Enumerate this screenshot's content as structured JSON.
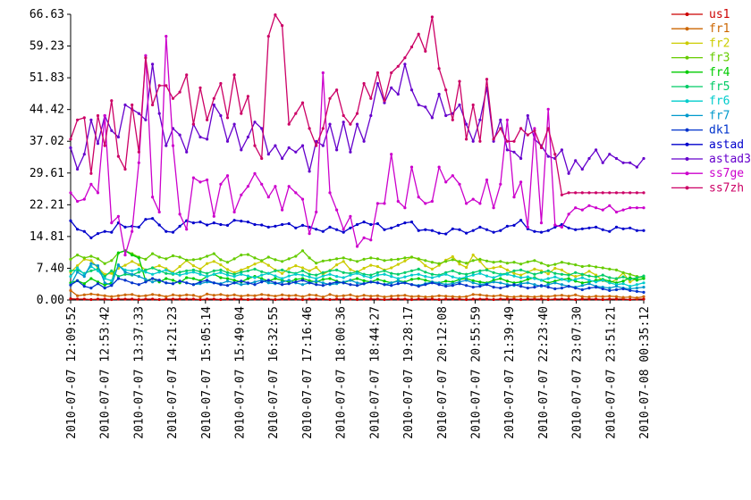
{
  "chart_data": {
    "type": "line",
    "title": "",
    "xlabel": "",
    "ylabel": "",
    "ylim": [
      0,
      66.63
    ],
    "y_ticks": [
      "0.00",
      "7.40",
      "14.81",
      "22.21",
      "29.61",
      "37.02",
      "44.42",
      "51.83",
      "59.23",
      "66.63"
    ],
    "x_ticks": [
      "2010-07-07 12:09:52",
      "2010-07-07 12:53:42",
      "2010-07-07 13:37:33",
      "2010-07-07 14:21:23",
      "2010-07-07 15:05:14",
      "2010-07-07 15:49:04",
      "2010-07-07 16:32:55",
      "2010-07-07 17:16:46",
      "2010-07-07 18:00:36",
      "2010-07-07 18:44:27",
      "2010-07-07 19:28:17",
      "2010-07-07 20:12:08",
      "2010-07-07 20:55:59",
      "2010-07-07 21:39:49",
      "2010-07-07 22:23:40",
      "2010-07-07 23:07:30",
      "2010-07-07 23:51:21",
      "2010-07-08 00:35:12"
    ],
    "grid": false,
    "legend_position": "right",
    "series": [
      {
        "name": "us1",
        "color": "#cc0000",
        "values": [
          0.3,
          0.2,
          0.2,
          0.1,
          0.2,
          0.2,
          0.1,
          0.2,
          0.2,
          0.2,
          0.1,
          0.2,
          0.2,
          0.1,
          0.2,
          0.2,
          0.2,
          0.2,
          0.2,
          0.1,
          0.2,
          0.2,
          0.1,
          0.2,
          0.2,
          0.2,
          0.1,
          0.2,
          0.2,
          0.2,
          0.1,
          0.2,
          0.2,
          0.2,
          0.1,
          0.2,
          0.2,
          0.2,
          0.1,
          0.2,
          0.2,
          0.2,
          0.1,
          0.2,
          0.2,
          0.2,
          0.1,
          0.2,
          0.2,
          0.2,
          0.1,
          0.2,
          0.2,
          0.2,
          0.1,
          0.2,
          0.2,
          0.2,
          0.1,
          0.2,
          0.2,
          0.2,
          0.1,
          0.2,
          0.2,
          0.2,
          0.1,
          0.2,
          0.2,
          0.2,
          0.1,
          0.2,
          0.2,
          0.2,
          0.1,
          0.2,
          0.2,
          0.2,
          0.1,
          0.2,
          0.2,
          0.2,
          0.1,
          0.2,
          0.2
        ]
      },
      {
        "name": "fr1",
        "color": "#cc6600",
        "values": [
          2.2,
          1.0,
          1.2,
          1.4,
          1.2,
          1.0,
          0.8,
          1.0,
          1.2,
          1.3,
          0.9,
          1.0,
          1.3,
          1.1,
          0.8,
          1.2,
          1.0,
          1.2,
          1.1,
          0.7,
          1.4,
          1.1,
          1.3,
          1.0,
          1.2,
          0.9,
          1.1,
          1.0,
          1.3,
          1.1,
          0.9,
          1.2,
          1.0,
          1.1,
          0.8,
          1.2,
          1.1,
          0.7,
          1.3,
          0.9,
          1.0,
          1.2,
          0.8,
          1.1,
          0.9,
          1.0,
          0.7,
          0.9,
          1.0,
          1.1,
          0.8,
          0.9,
          0.7,
          0.8,
          1.0,
          0.9,
          0.8,
          0.7,
          0.8,
          1.3,
          1.2,
          1.0,
          0.9,
          1.1,
          0.8,
          0.7,
          0.9,
          0.8,
          0.7,
          0.9,
          0.8,
          1.0,
          1.1,
          0.9,
          1.2,
          0.8,
          0.7,
          0.9,
          0.8,
          0.9,
          0.8,
          0.6,
          0.7,
          0.5,
          0.8
        ]
      },
      {
        "name": "fr2",
        "color": "#cccc00",
        "values": [
          6.5,
          8.0,
          9.5,
          9.2,
          7.5,
          6.0,
          6.2,
          7.4,
          8.1,
          9.0,
          8.2,
          7.0,
          7.5,
          8.0,
          7.3,
          6.5,
          7.8,
          9.2,
          8.0,
          7.2,
          8.5,
          9.0,
          8.2,
          7.1,
          6.4,
          7.0,
          7.6,
          8.4,
          9.0,
          8.1,
          7.0,
          6.2,
          7.3,
          8.0,
          7.5,
          6.8,
          7.6,
          6.0,
          6.9,
          8.2,
          9.0,
          7.1,
          6.5,
          7.4,
          8.1,
          7.8,
          7.0,
          7.5,
          8.3,
          9.1,
          10.0,
          9.5,
          8.0,
          7.2,
          8.1,
          9.3,
          10.1,
          8.4,
          7.6,
          10.5,
          9.0,
          7.2,
          7.5,
          7.8,
          7.0,
          6.2,
          5.8,
          6.5,
          7.2,
          6.8,
          6.1,
          7.4,
          7.0,
          6.0,
          5.5,
          5.9,
          6.7,
          5.8,
          4.5,
          4.0,
          4.8,
          6.3,
          4.2,
          5.1,
          5.5
        ]
      },
      {
        "name": "fr3",
        "color": "#66cc00",
        "values": [
          9.5,
          10.5,
          9.8,
          10.2,
          9.6,
          8.5,
          9.2,
          11.0,
          11.5,
          10.8,
          10.0,
          9.5,
          10.8,
          10.0,
          9.6,
          10.3,
          10.0,
          9.3,
          9.4,
          9.6,
          10.2,
          10.8,
          9.4,
          8.8,
          9.6,
          10.5,
          10.6,
          9.8,
          9.2,
          10.0,
          9.4,
          9.0,
          9.6,
          10.2,
          11.5,
          9.8,
          8.6,
          9.1,
          9.3,
          9.6,
          9.8,
          9.4,
          9.0,
          9.5,
          9.8,
          9.6,
          9.2,
          9.4,
          9.5,
          9.8,
          10.0,
          9.6,
          9.2,
          8.8,
          8.5,
          9.0,
          9.4,
          9.0,
          8.6,
          9.2,
          9.5,
          9.1,
          8.8,
          9.0,
          8.6,
          8.8,
          8.4,
          8.9,
          9.2,
          8.6,
          8.0,
          8.3,
          8.8,
          8.5,
          8.2,
          7.8,
          8.0,
          7.7,
          7.5,
          7.2,
          7.0,
          6.4,
          6.0,
          5.5,
          5.2
        ]
      },
      {
        "name": "fr4",
        "color": "#00cc00",
        "values": [
          4.0,
          4.5,
          3.8,
          5.0,
          4.2,
          3.5,
          4.0,
          11.0,
          11.5,
          10.5,
          9.8,
          4.5,
          5.0,
          4.2,
          5.0,
          4.6,
          4.0,
          5.2,
          5.0,
          4.5,
          5.5,
          6.0,
          5.2,
          5.0,
          4.6,
          4.2,
          5.0,
          5.5,
          5.0,
          4.4,
          5.0,
          4.6,
          4.2,
          4.8,
          5.0,
          4.5,
          4.2,
          4.8,
          5.0,
          4.4,
          4.0,
          4.6,
          5.0,
          4.5,
          4.2,
          4.8,
          4.4,
          4.0,
          4.5,
          4.2,
          4.8,
          5.0,
          4.6,
          4.2,
          4.0,
          4.4,
          4.2,
          4.8,
          5.0,
          4.5,
          4.2,
          4.0,
          4.6,
          5.0,
          4.4,
          4.0,
          4.2,
          4.8,
          5.2,
          4.6,
          4.0,
          4.4,
          4.8,
          5.0,
          4.4,
          4.0,
          4.2,
          4.6,
          4.8,
          4.4,
          4.0,
          4.4,
          5.2,
          4.6,
          5.0
        ]
      },
      {
        "name": "fr5",
        "color": "#00cc66",
        "values": [
          6.8,
          7.0,
          6.2,
          6.8,
          7.2,
          5.5,
          6.8,
          5.5,
          6.0,
          5.8,
          6.5,
          7.0,
          7.5,
          6.8,
          6.2,
          6.0,
          6.5,
          6.8,
          7.0,
          6.6,
          6.2,
          6.8,
          7.0,
          6.4,
          6.0,
          6.5,
          6.8,
          7.2,
          6.6,
          6.2,
          6.8,
          7.0,
          6.5,
          6.2,
          6.8,
          6.0,
          5.8,
          6.4,
          6.8,
          7.0,
          6.4,
          6.2,
          6.6,
          6.0,
          5.8,
          6.4,
          6.8,
          6.2,
          6.0,
          6.4,
          6.8,
          7.2,
          6.5,
          6.0,
          5.8,
          6.4,
          6.8,
          6.2,
          6.0,
          6.4,
          6.8,
          7.0,
          6.4,
          6.0,
          6.2,
          6.8,
          7.0,
          6.5,
          6.0,
          6.4,
          6.8,
          6.2,
          6.0,
          5.8,
          6.4,
          6.0,
          5.6,
          5.4,
          5.8,
          5.2,
          5.0,
          5.4,
          4.8,
          5.2,
          5.6
        ]
      },
      {
        "name": "fr6",
        "color": "#00cccc",
        "values": [
          5.5,
          7.5,
          6.0,
          7.8,
          6.8,
          5.0,
          4.5,
          8.0,
          7.0,
          6.8,
          7.2,
          6.5,
          6.0,
          6.5,
          7.0,
          6.2,
          5.8,
          6.2,
          6.5,
          6.0,
          5.5,
          6.0,
          6.4,
          5.8,
          5.5,
          6.0,
          5.6,
          5.2,
          5.8,
          6.2,
          5.6,
          5.0,
          5.6,
          6.0,
          5.8,
          5.4,
          5.0,
          5.6,
          6.0,
          5.5,
          5.2,
          5.8,
          6.2,
          5.6,
          5.2,
          5.8,
          6.0,
          5.5,
          5.0,
          5.4,
          5.8,
          6.0,
          5.5,
          5.2,
          5.6,
          6.0,
          5.4,
          5.0,
          5.4,
          5.8,
          6.2,
          5.6,
          5.2,
          5.8,
          6.0,
          5.6,
          5.2,
          5.4,
          5.0,
          4.6,
          5.0,
          5.4,
          4.8,
          4.4,
          4.8,
          5.2,
          4.6,
          4.2,
          4.6,
          4.0,
          3.6,
          3.8,
          3.2,
          3.6,
          4.0
        ]
      },
      {
        "name": "fr7",
        "color": "#0099cc",
        "values": [
          3.5,
          6.5,
          5.5,
          8.5,
          8.0,
          4.0,
          3.5,
          8.2,
          6.5,
          6.0,
          5.5,
          4.8,
          4.2,
          4.6,
          4.0,
          3.8,
          4.4,
          4.0,
          3.6,
          3.8,
          4.2,
          4.0,
          3.8,
          4.4,
          4.0,
          3.6,
          3.8,
          4.2,
          4.6,
          4.0,
          3.8,
          4.2,
          4.6,
          4.0,
          3.6,
          4.0,
          4.4,
          4.0,
          3.6,
          3.8,
          4.2,
          4.6,
          4.0,
          3.8,
          4.2,
          4.0,
          3.6,
          4.0,
          4.4,
          4.0,
          3.6,
          3.4,
          3.8,
          4.2,
          4.0,
          3.6,
          3.8,
          4.2,
          4.6,
          4.0,
          3.6,
          3.8,
          4.2,
          4.0,
          3.6,
          3.4,
          3.8,
          4.0,
          3.6,
          3.2,
          3.6,
          4.0,
          3.6,
          3.2,
          3.0,
          3.4,
          3.8,
          3.2,
          3.0,
          2.8,
          3.2,
          2.8,
          2.6,
          2.8,
          3.0
        ]
      },
      {
        "name": "dk1",
        "color": "#0033cc",
        "values": [
          3.5,
          4.5,
          3.2,
          2.8,
          3.8,
          2.8,
          3.4,
          5.0,
          4.6,
          4.0,
          3.6,
          4.2,
          5.0,
          4.6,
          4.0,
          3.8,
          4.4,
          4.0,
          3.6,
          4.2,
          4.6,
          4.0,
          3.6,
          3.4,
          4.0,
          4.4,
          4.0,
          3.6,
          4.2,
          4.6,
          4.0,
          3.6,
          3.8,
          4.2,
          4.6,
          4.0,
          3.6,
          3.4,
          3.8,
          4.2,
          4.0,
          3.6,
          3.4,
          3.8,
          4.2,
          4.0,
          3.6,
          3.4,
          3.8,
          4.0,
          3.6,
          3.2,
          3.6,
          4.0,
          3.6,
          3.2,
          3.4,
          3.8,
          3.4,
          3.0,
          3.2,
          3.6,
          3.0,
          2.8,
          3.2,
          3.6,
          3.2,
          2.8,
          3.0,
          3.4,
          3.0,
          2.6,
          2.8,
          3.2,
          2.8,
          2.4,
          2.8,
          3.0,
          2.6,
          2.2,
          2.4,
          2.6,
          2.2,
          2.0,
          1.8
        ]
      },
      {
        "name": "astad",
        "color": "#0000cc",
        "values": [
          18.5,
          16.5,
          16.0,
          14.5,
          15.5,
          16.0,
          15.8,
          18.0,
          17.0,
          17.2,
          17.0,
          18.8,
          19.0,
          17.5,
          16.0,
          15.8,
          17.2,
          18.5,
          18.0,
          18.2,
          17.5,
          18.0,
          17.6,
          17.4,
          18.6,
          18.4,
          18.2,
          17.6,
          17.5,
          17.0,
          17.2,
          17.6,
          17.8,
          16.8,
          17.4,
          17.0,
          16.5,
          16.0,
          17.0,
          16.4,
          15.8,
          16.8,
          17.6,
          18.2,
          17.6,
          17.8,
          16.4,
          16.8,
          17.4,
          18.0,
          18.2,
          16.2,
          16.4,
          16.2,
          15.6,
          15.4,
          16.6,
          16.4,
          15.6,
          16.2,
          17.0,
          16.4,
          15.8,
          16.2,
          17.2,
          17.4,
          18.6,
          16.6,
          16.0,
          15.8,
          16.2,
          17.0,
          17.6,
          16.8,
          16.4,
          16.6,
          16.8,
          17.0,
          16.4,
          16.0,
          17.0,
          16.6,
          16.8,
          16.2,
          16.2
        ]
      },
      {
        "name": "astad3",
        "color": "#6600cc",
        "values": [
          35.5,
          30.5,
          34.0,
          42.0,
          36.5,
          43.0,
          39.5,
          38.0,
          45.5,
          44.5,
          43.5,
          42.0,
          55.0,
          43.5,
          36.0,
          40.0,
          38.5,
          34.5,
          41.0,
          38.0,
          37.5,
          45.5,
          43.0,
          37.0,
          41.0,
          35.0,
          38.0,
          41.5,
          40.0,
          34.0,
          36.0,
          33.0,
          35.5,
          34.5,
          36.0,
          30.0,
          37.0,
          36.0,
          41.0,
          35.0,
          41.5,
          34.5,
          41.0,
          37.0,
          43.0,
          50.5,
          46.0,
          49.5,
          48.0,
          55.0,
          49.0,
          45.5,
          45.0,
          42.5,
          48.0,
          43.0,
          43.5,
          45.5,
          41.0,
          37.0,
          42.0,
          49.5,
          37.0,
          42.0,
          35.0,
          34.5,
          33.0,
          43.0,
          37.5,
          36.0,
          33.5,
          33.0,
          35.0,
          29.5,
          32.5,
          30.5,
          33.0,
          35.0,
          32.0,
          34.0,
          33.0,
          32.0,
          32.0,
          31.0,
          33.0
        ]
      },
      {
        "name": "ss7ge",
        "color": "#cc00cc",
        "values": [
          25.0,
          23.0,
          23.5,
          27.0,
          25.0,
          43.0,
          18.0,
          19.5,
          10.5,
          16.0,
          32.0,
          57.0,
          24.0,
          20.5,
          61.5,
          36.0,
          20.0,
          16.5,
          28.5,
          27.5,
          28.0,
          19.5,
          27.0,
          29.0,
          20.5,
          24.5,
          26.5,
          29.5,
          27.0,
          24.0,
          26.5,
          21.0,
          26.5,
          25.0,
          23.5,
          15.5,
          20.5,
          53.0,
          25.0,
          21.0,
          16.5,
          19.5,
          12.5,
          14.5,
          14.0,
          22.5,
          22.5,
          34.0,
          23.0,
          21.5,
          31.0,
          24.0,
          22.5,
          23.0,
          31.0,
          27.5,
          29.0,
          27.0,
          22.5,
          23.5,
          22.5,
          28.0,
          21.5,
          27.0,
          42.0,
          24.0,
          27.5,
          17.0,
          40.0,
          18.0,
          44.5,
          17.5,
          17.0,
          20.0,
          21.5,
          21.0,
          22.0,
          21.5,
          21.0,
          22.0,
          20.5,
          21.0,
          21.5,
          21.5,
          21.5
        ]
      },
      {
        "name": "ss7zh",
        "color": "#cc0066",
        "values": [
          37.5,
          42.0,
          42.5,
          29.5,
          43.0,
          36.0,
          46.5,
          33.5,
          30.5,
          45.5,
          34.5,
          56.5,
          45.5,
          50.0,
          50.0,
          47.0,
          48.5,
          52.5,
          41.0,
          49.5,
          42.0,
          47.0,
          50.5,
          42.5,
          52.5,
          43.5,
          47.5,
          36.0,
          33.0,
          61.5,
          66.5,
          64.0,
          41.0,
          43.5,
          46.0,
          40.0,
          36.0,
          40.0,
          47.0,
          49.0,
          43.0,
          41.0,
          43.5,
          50.5,
          47.0,
          53.0,
          46.5,
          53.0,
          54.5,
          56.5,
          59.0,
          62.0,
          58.0,
          66.0,
          54.0,
          49.0,
          42.0,
          51.0,
          37.5,
          45.5,
          37.0,
          51.5,
          37.5,
          40.0,
          37.0,
          37.0,
          40.0,
          38.5,
          39.5,
          35.5,
          40.0,
          34.0,
          24.5,
          25.0,
          25.0,
          25.0,
          25.0,
          25.0,
          25.0,
          25.0,
          25.0,
          25.0,
          25.0,
          25.0,
          25.0
        ]
      }
    ]
  }
}
